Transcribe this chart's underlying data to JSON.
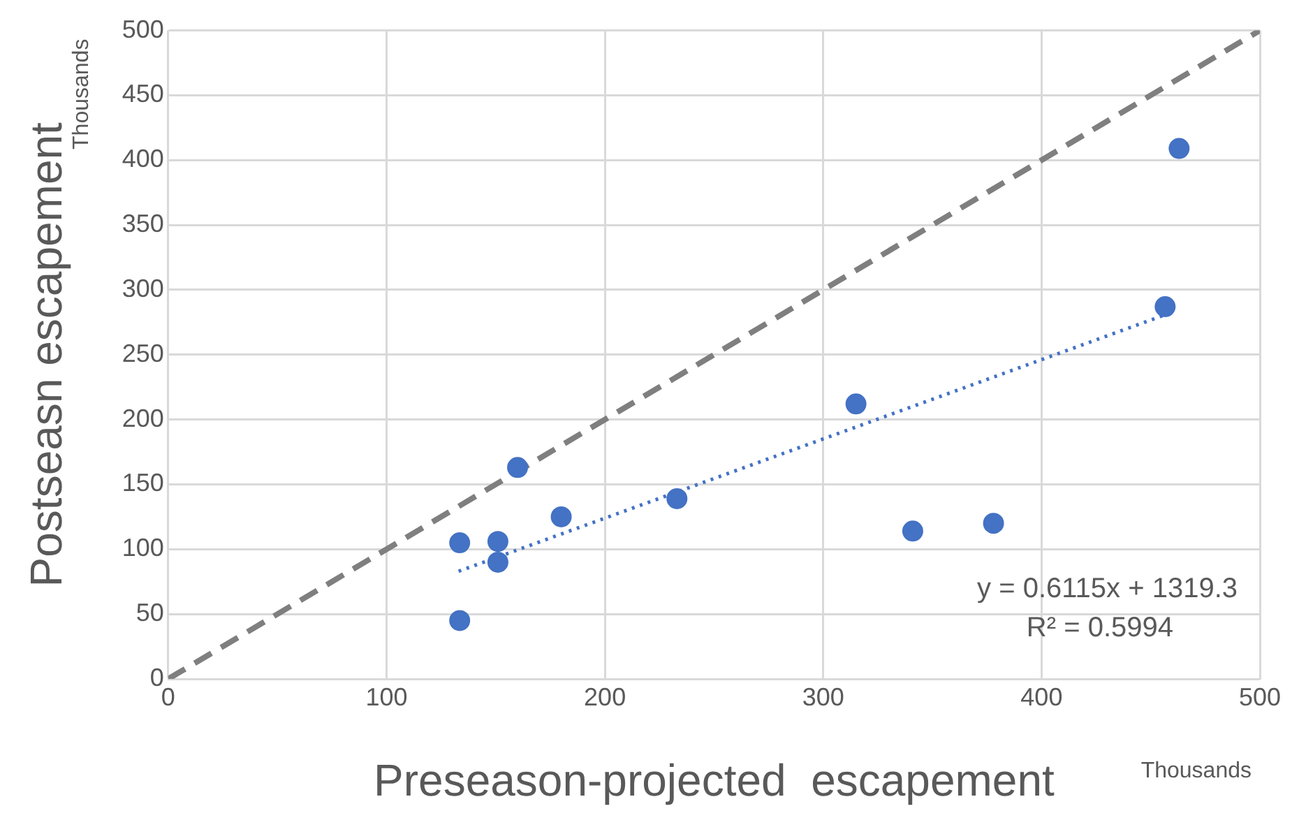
{
  "chart_data": {
    "type": "scatter",
    "xlabel": "Preseason-projected  escapement",
    "ylabel": "Postseasn escapement",
    "xlim": [
      0,
      500
    ],
    "xticks": [
      0,
      100,
      200,
      300,
      400,
      500
    ],
    "ylim": [
      0,
      500
    ],
    "yticks": [
      0,
      50,
      100,
      150,
      200,
      250,
      300,
      350,
      400,
      450,
      500
    ],
    "grid": true,
    "marker": "circle",
    "series": [
      {
        "color": "#4472c4",
        "x": [
          133.5,
          133.5,
          151,
          151,
          160,
          180,
          233,
          315,
          341,
          378,
          456.6,
          463
        ],
        "values": [
          105,
          45,
          106,
          90,
          163,
          125,
          139,
          212,
          114,
          120,
          287,
          409
        ]
      },
      {
        "type": "line",
        "color": "#4472c4",
        "line_style": "dotted",
        "marker": "none",
        "x": [
          133,
          457
        ],
        "values": [
          83,
          281
        ]
      },
      {
        "type": "line",
        "color": "#7f7f7f",
        "line_style": "dashed",
        "marker": "none",
        "x": [
          0,
          500
        ],
        "values": [
          0,
          500
        ]
      }
    ],
    "annotations": [
      "Thousands",
      "Thousands",
      "y = 0.6115x + 1319.3",
      "R² = 0.5994"
    ]
  }
}
